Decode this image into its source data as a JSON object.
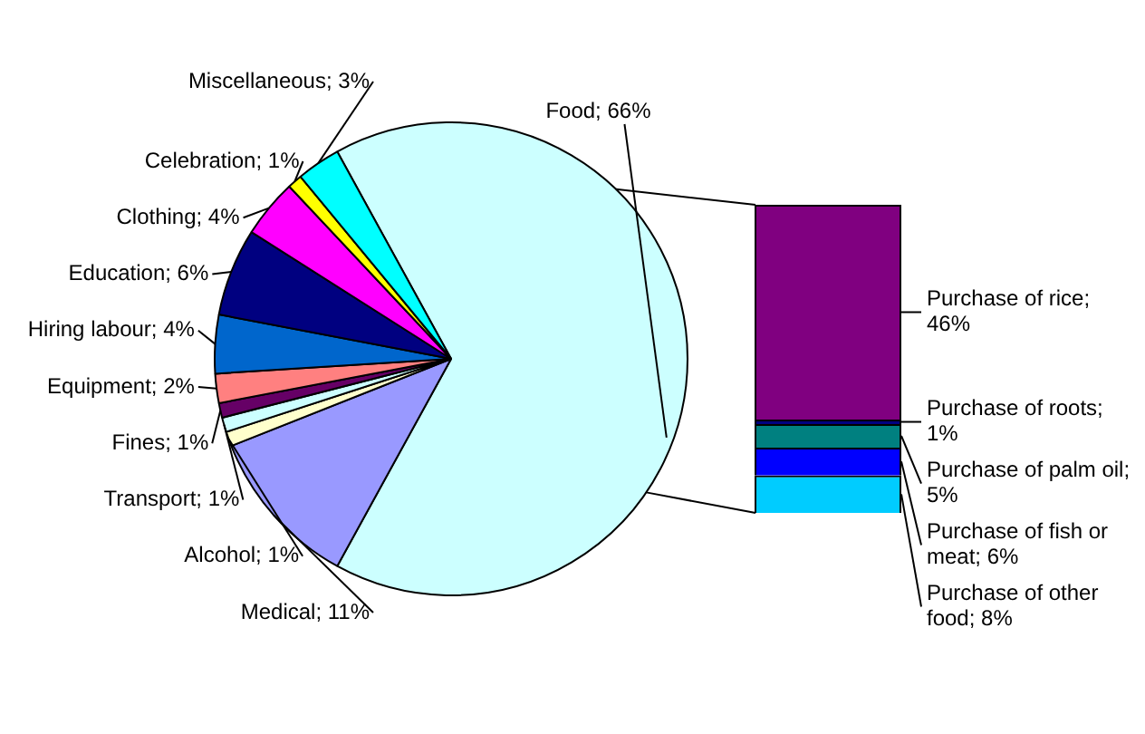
{
  "chart_data": [
    {
      "type": "pie",
      "categories": [
        "Food",
        "Medical",
        "Alcohol",
        "Transport",
        "Fines",
        "Equipment",
        "Hiring labour",
        "Education",
        "Clothing",
        "Celebration",
        "Miscellaneous"
      ],
      "values": [
        66,
        11,
        1,
        1,
        1,
        2,
        4,
        6,
        4,
        1,
        3
      ],
      "value_labels": [
        "66%",
        "11%",
        "1%",
        "1%",
        "1%",
        "2%",
        "4%",
        "6%",
        "4%",
        "1%",
        "3%"
      ],
      "colors": [
        "#ccffff",
        "#9999ff",
        "#ffffcc",
        "#ccffff",
        "#660066",
        "#ff8080",
        "#0066cc",
        "#000080",
        "#ff00ff",
        "#ffff00",
        "#00ffff"
      ]
    },
    {
      "type": "bar",
      "stacked": true,
      "categories": [
        null
      ],
      "series": [
        {
          "name": "Purchase of other food;",
          "color": "#00ccff",
          "values": [
            8
          ],
          "value_labels": [
            "8%"
          ]
        },
        {
          "name": "Purchase of fish or meat;",
          "color": "#0000ff",
          "values": [
            6
          ],
          "value_labels": [
            "6%"
          ]
        },
        {
          "name": "Purchase of palm oil;",
          "color": "#008080",
          "values": [
            5
          ],
          "value_labels": [
            "5%"
          ]
        },
        {
          "name": "Purchase of roots;",
          "color": "#000080",
          "values": [
            1
          ],
          "value_labels": [
            "1%"
          ]
        },
        {
          "name": "Purchase of rice;",
          "color": "#800080",
          "values": [
            46
          ],
          "value_labels": [
            "46%"
          ]
        }
      ]
    }
  ]
}
